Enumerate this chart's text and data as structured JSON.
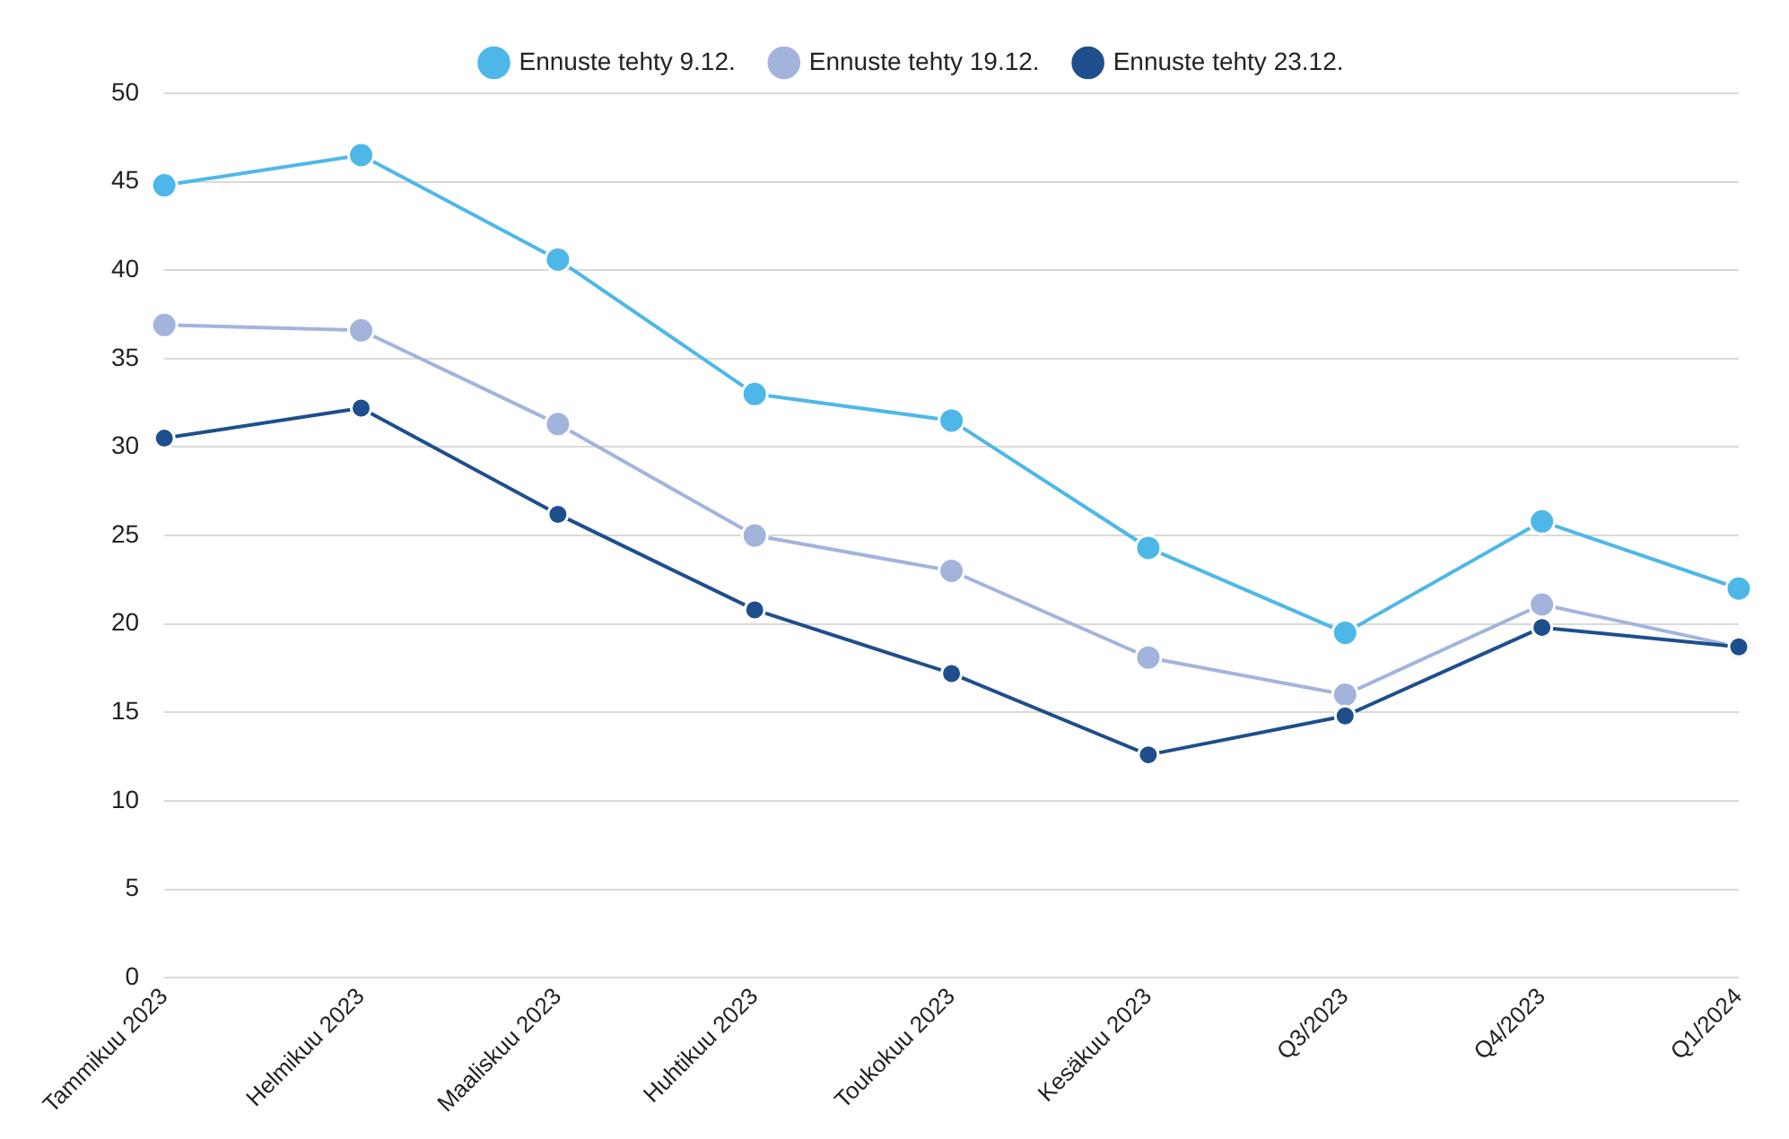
{
  "chart_data": {
    "type": "line",
    "categories": [
      "Tammikuu 2023",
      "Helmikuu 2023",
      "Maaliskuu 2023",
      "Huhtikuu 2023",
      "Toukokuu 2023",
      "Kesäkuu 2023",
      "Q3/2023",
      "Q4/2023",
      "Q1/2024"
    ],
    "series": [
      {
        "name": "Ennuste tehty 9.12.",
        "color": "#4db8e8",
        "values": [
          44.8,
          46.5,
          40.6,
          33.0,
          31.5,
          24.3,
          19.5,
          25.8,
          22.0
        ]
      },
      {
        "name": "Ennuste tehty 19.12.",
        "color": "#a3b4dc",
        "values": [
          36.9,
          36.6,
          31.3,
          25.0,
          23.0,
          18.1,
          16.0,
          21.1,
          18.7
        ]
      },
      {
        "name": "Ennuste tehty 23.12.",
        "color": "#1f4e8c",
        "values": [
          30.5,
          32.2,
          26.2,
          20.8,
          17.2,
          12.6,
          14.8,
          19.8,
          18.7
        ]
      }
    ],
    "ylim": [
      0,
      50
    ],
    "yticks": [
      0,
      5,
      10,
      15,
      20,
      25,
      30,
      35,
      40,
      45,
      50
    ],
    "grid": "y",
    "legend": "top",
    "marker": "circle",
    "line_style": "solid"
  }
}
